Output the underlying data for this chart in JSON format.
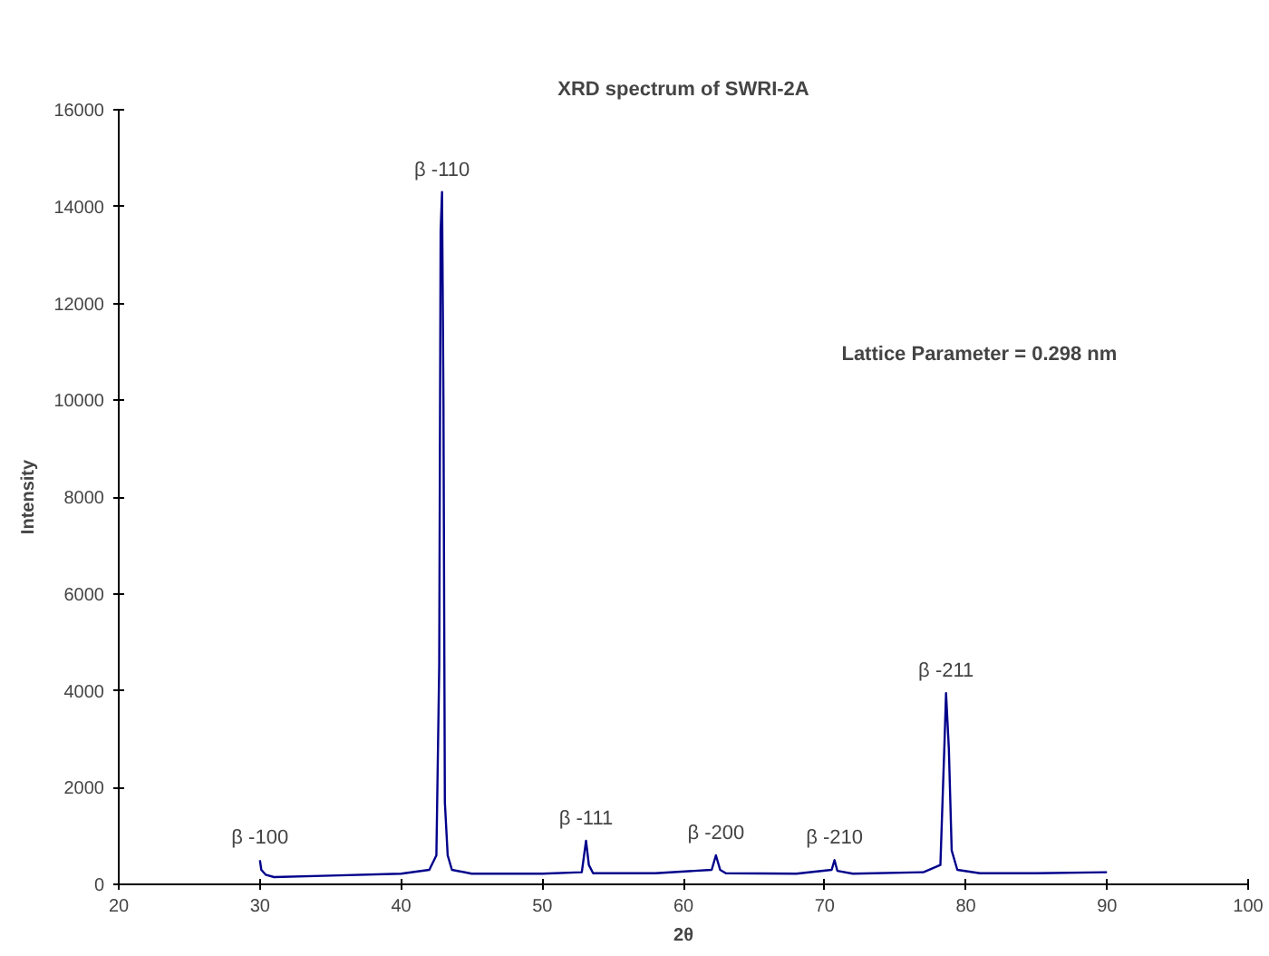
{
  "chart_data": {
    "type": "line",
    "title": "XRD spectrum of SWRI-2A",
    "xlabel": "2θ",
    "ylabel": "Intensity",
    "xlim": [
      20,
      100
    ],
    "xticks": [
      20,
      30,
      40,
      50,
      60,
      70,
      80,
      90,
      100
    ],
    "ylim": [
      0,
      16000
    ],
    "yticks": [
      0,
      2000,
      4000,
      6000,
      8000,
      10000,
      12000,
      14000,
      16000
    ],
    "grid": false,
    "marker": "none",
    "line_style": "solid",
    "series": [
      {
        "color": "#00008b",
        "x": [
          30.0,
          30.1,
          30.4,
          31,
          35,
          40,
          42,
          42.5,
          42.7,
          42.8,
          42.9,
          43.0,
          43.1,
          43.3,
          43.6,
          45,
          50,
          52.8,
          53.1,
          53.3,
          53.6,
          58,
          62.0,
          62.3,
          62.6,
          63,
          68,
          70.5,
          70.7,
          70.9,
          72,
          77,
          78.2,
          78.5,
          78.6,
          78.8,
          79.0,
          79.4,
          81,
          85,
          90
        ],
        "values": [
          500,
          300,
          200,
          150,
          180,
          220,
          300,
          600,
          4500,
          13500,
          14300,
          10000,
          1700,
          600,
          300,
          220,
          220,
          250,
          900,
          400,
          230,
          230,
          300,
          600,
          300,
          230,
          220,
          300,
          500,
          280,
          220,
          250,
          400,
          3000,
          3950,
          2800,
          700,
          300,
          230,
          230,
          250
        ]
      }
    ],
    "annotations": [
      {
        "text": "β -100",
        "x": 30,
        "y": 500
      },
      {
        "text": "β -110",
        "x": 42.9,
        "y": 14300
      },
      {
        "text": "β -111",
        "x": 53.1,
        "y": 900
      },
      {
        "text": "β -200",
        "x": 62.3,
        "y": 600
      },
      {
        "text": "β -210",
        "x": 70.7,
        "y": 500
      },
      {
        "text": "β -211",
        "x": 78.6,
        "y": 3950
      },
      "Lattice Parameter = 0.298 nm"
    ]
  }
}
